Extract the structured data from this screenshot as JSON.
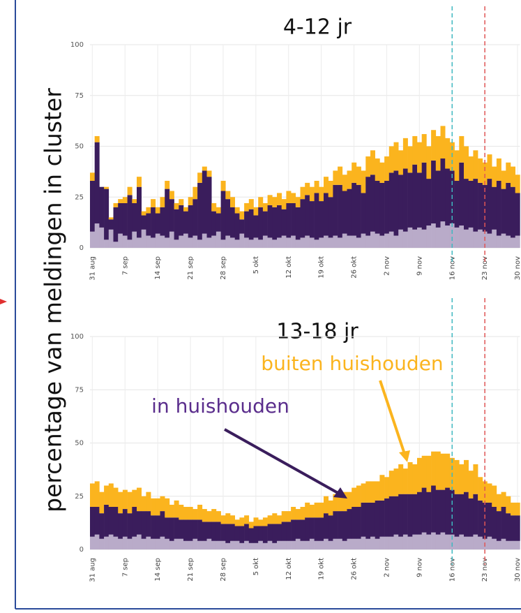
{
  "ylabel": "percentage van meldingen in cluster",
  "chart_data": [
    {
      "type": "stacked_bar",
      "title": "4-12 jr",
      "categories": [
        "31 aug",
        null,
        null,
        null,
        null,
        null,
        null,
        "7 sep",
        null,
        null,
        null,
        null,
        null,
        null,
        "14 sep",
        null,
        null,
        null,
        null,
        null,
        null,
        "21 sep",
        null,
        null,
        null,
        null,
        null,
        null,
        "28 sep",
        null,
        null,
        null,
        null,
        null,
        null,
        "5 okt",
        null,
        null,
        null,
        null,
        null,
        null,
        "12 okt",
        null,
        null,
        null,
        null,
        null,
        null,
        "19 okt",
        null,
        null,
        null,
        null,
        null,
        null,
        "26 okt",
        null,
        null,
        null,
        null,
        null,
        null,
        "2 nov",
        null,
        null,
        null,
        null,
        null,
        null,
        "9 nov",
        null,
        null,
        null,
        null,
        null,
        null,
        "16 nov",
        null,
        null,
        null,
        null,
        null,
        null,
        "23 nov",
        null,
        null,
        null,
        null,
        null,
        null,
        "30 nov"
      ],
      "series": [
        {
          "color": "#b9abc9",
          "values": [
            8,
            12,
            10,
            4,
            9,
            3,
            7,
            6,
            4,
            8,
            5,
            9,
            6,
            5,
            7,
            6,
            5,
            8,
            4,
            6,
            7,
            5,
            6,
            4,
            7,
            5,
            6,
            8,
            4,
            6,
            5,
            4,
            7,
            5,
            4,
            5,
            4,
            6,
            5,
            4,
            5,
            6,
            5,
            6,
            4,
            5,
            6,
            5,
            4,
            5,
            6,
            5,
            6,
            5,
            7,
            6,
            6,
            5,
            7,
            6,
            8,
            7,
            6,
            7,
            8,
            6,
            9,
            8,
            10,
            9,
            10,
            9,
            11,
            12,
            10,
            13,
            11,
            12,
            10,
            11,
            9,
            10,
            8,
            9,
            8,
            7,
            9,
            6,
            7,
            6,
            5,
            6
          ]
        },
        {
          "color": "#3a1d5c",
          "values": [
            25,
            40,
            20,
            25,
            5,
            17,
            15,
            16,
            22,
            14,
            25,
            7,
            11,
            15,
            10,
            14,
            24,
            16,
            15,
            15,
            11,
            16,
            18,
            28,
            31,
            30,
            12,
            9,
            24,
            18,
            15,
            13,
            7,
            13,
            15,
            11,
            16,
            12,
            16,
            16,
            16,
            13,
            17,
            16,
            16,
            19,
            20,
            18,
            23,
            18,
            21,
            20,
            25,
            26,
            21,
            23,
            26,
            26,
            20,
            29,
            28,
            26,
            26,
            26,
            29,
            32,
            27,
            31,
            27,
            32,
            27,
            33,
            23,
            31,
            28,
            31,
            28,
            26,
            23,
            31,
            25,
            23,
            26,
            23,
            23,
            27,
            21,
            27,
            22,
            26,
            25,
            21
          ]
        },
        {
          "color": "#fbb41e",
          "values": [
            4,
            3,
            0,
            1,
            1,
            2,
            2,
            3,
            4,
            2,
            5,
            2,
            3,
            4,
            3,
            5,
            4,
            4,
            3,
            3,
            2,
            4,
            6,
            5,
            2,
            3,
            4,
            3,
            5,
            4,
            5,
            3,
            4,
            4,
            5,
            4,
            5,
            4,
            5,
            5,
            6,
            5,
            6,
            5,
            5,
            6,
            6,
            7,
            6,
            7,
            8,
            8,
            7,
            9,
            8,
            9,
            10,
            9,
            11,
            10,
            12,
            11,
            10,
            12,
            13,
            14,
            12,
            15,
            13,
            14,
            15,
            14,
            16,
            15,
            17,
            16,
            15,
            14,
            15,
            13,
            16,
            12,
            14,
            12,
            11,
            12,
            10,
            11,
            9,
            10,
            10,
            9
          ]
        }
      ],
      "ylim": [
        0,
        100
      ],
      "yticks": [
        0,
        25,
        50,
        75,
        100
      ],
      "grid": true,
      "vlines": [
        {
          "x": "16 nov",
          "color": "#3fb8c0"
        },
        {
          "x": "23 nov",
          "color": "#e05555"
        }
      ]
    },
    {
      "type": "stacked_bar",
      "title": "13-18 jr",
      "categories": [
        "31 aug",
        null,
        null,
        null,
        null,
        null,
        null,
        "7 sep",
        null,
        null,
        null,
        null,
        null,
        null,
        "14 sep",
        null,
        null,
        null,
        null,
        null,
        null,
        "21 sep",
        null,
        null,
        null,
        null,
        null,
        null,
        "28 sep",
        null,
        null,
        null,
        null,
        null,
        null,
        "5 okt",
        null,
        null,
        null,
        null,
        null,
        null,
        "12 okt",
        null,
        null,
        null,
        null,
        null,
        null,
        "19 okt",
        null,
        null,
        null,
        null,
        null,
        null,
        "26 okt",
        null,
        null,
        null,
        null,
        null,
        null,
        "2 nov",
        null,
        null,
        null,
        null,
        null,
        null,
        "9 nov",
        null,
        null,
        null,
        null,
        null,
        null,
        "16 nov",
        null,
        null,
        null,
        null,
        null,
        null,
        "23 nov",
        null,
        null,
        null,
        null,
        null,
        null,
        "30 nov"
      ],
      "series": [
        {
          "color": "#b9abc9",
          "values": [
            6,
            7,
            5,
            6,
            7,
            6,
            5,
            6,
            5,
            6,
            7,
            5,
            6,
            5,
            5,
            6,
            5,
            4,
            5,
            5,
            4,
            4,
            5,
            4,
            4,
            5,
            4,
            4,
            4,
            3,
            4,
            4,
            3,
            4,
            3,
            3,
            4,
            3,
            4,
            3,
            4,
            4,
            4,
            4,
            5,
            4,
            4,
            5,
            4,
            4,
            5,
            4,
            5,
            5,
            4,
            5,
            5,
            5,
            6,
            5,
            6,
            5,
            6,
            6,
            6,
            7,
            6,
            7,
            6,
            7,
            7,
            8,
            7,
            8,
            7,
            8,
            7,
            7,
            6,
            7,
            6,
            6,
            7,
            6,
            5,
            6,
            5,
            4,
            5,
            4,
            4,
            4
          ]
        },
        {
          "color": "#3a1d5c",
          "values": [
            14,
            13,
            12,
            15,
            13,
            14,
            12,
            13,
            12,
            14,
            11,
            13,
            12,
            11,
            11,
            12,
            10,
            11,
            10,
            9,
            10,
            10,
            9,
            10,
            9,
            8,
            9,
            9,
            8,
            9,
            8,
            7,
            8,
            8,
            7,
            8,
            7,
            8,
            8,
            9,
            8,
            9,
            9,
            10,
            9,
            10,
            11,
            10,
            11,
            11,
            12,
            12,
            13,
            13,
            14,
            14,
            15,
            15,
            16,
            17,
            16,
            18,
            17,
            18,
            19,
            18,
            20,
            19,
            20,
            19,
            20,
            21,
            20,
            22,
            21,
            20,
            22,
            21,
            20,
            19,
            21,
            18,
            19,
            17,
            17,
            16,
            15,
            14,
            15,
            13,
            12,
            12
          ]
        },
        {
          "color": "#fbb41e",
          "values": [
            11,
            12,
            10,
            9,
            11,
            9,
            10,
            9,
            10,
            8,
            11,
            7,
            9,
            8,
            8,
            7,
            9,
            6,
            8,
            7,
            6,
            6,
            5,
            7,
            6,
            5,
            6,
            5,
            4,
            5,
            4,
            3,
            4,
            4,
            3,
            4,
            3,
            4,
            4,
            5,
            4,
            5,
            5,
            6,
            5,
            6,
            7,
            6,
            7,
            7,
            8,
            7,
            8,
            8,
            9,
            8,
            9,
            10,
            9,
            10,
            10,
            9,
            12,
            10,
            12,
            13,
            14,
            12,
            15,
            14,
            16,
            15,
            17,
            16,
            18,
            17,
            16,
            15,
            16,
            14,
            15,
            13,
            14,
            11,
            10,
            9,
            10,
            8,
            7,
            8,
            6,
            6
          ]
        }
      ],
      "ylim": [
        0,
        100
      ],
      "yticks": [
        0,
        25,
        50,
        75,
        100
      ],
      "grid": true,
      "vlines": [
        {
          "x": "16 nov",
          "color": "#3fb8c0"
        },
        {
          "x": "23 nov",
          "color": "#e05555"
        }
      ],
      "annotations": [
        {
          "text": "buiten huishouden",
          "color": "#fbb41e"
        },
        {
          "text": "in huishouden",
          "color": "#5a2d8c"
        }
      ]
    }
  ]
}
